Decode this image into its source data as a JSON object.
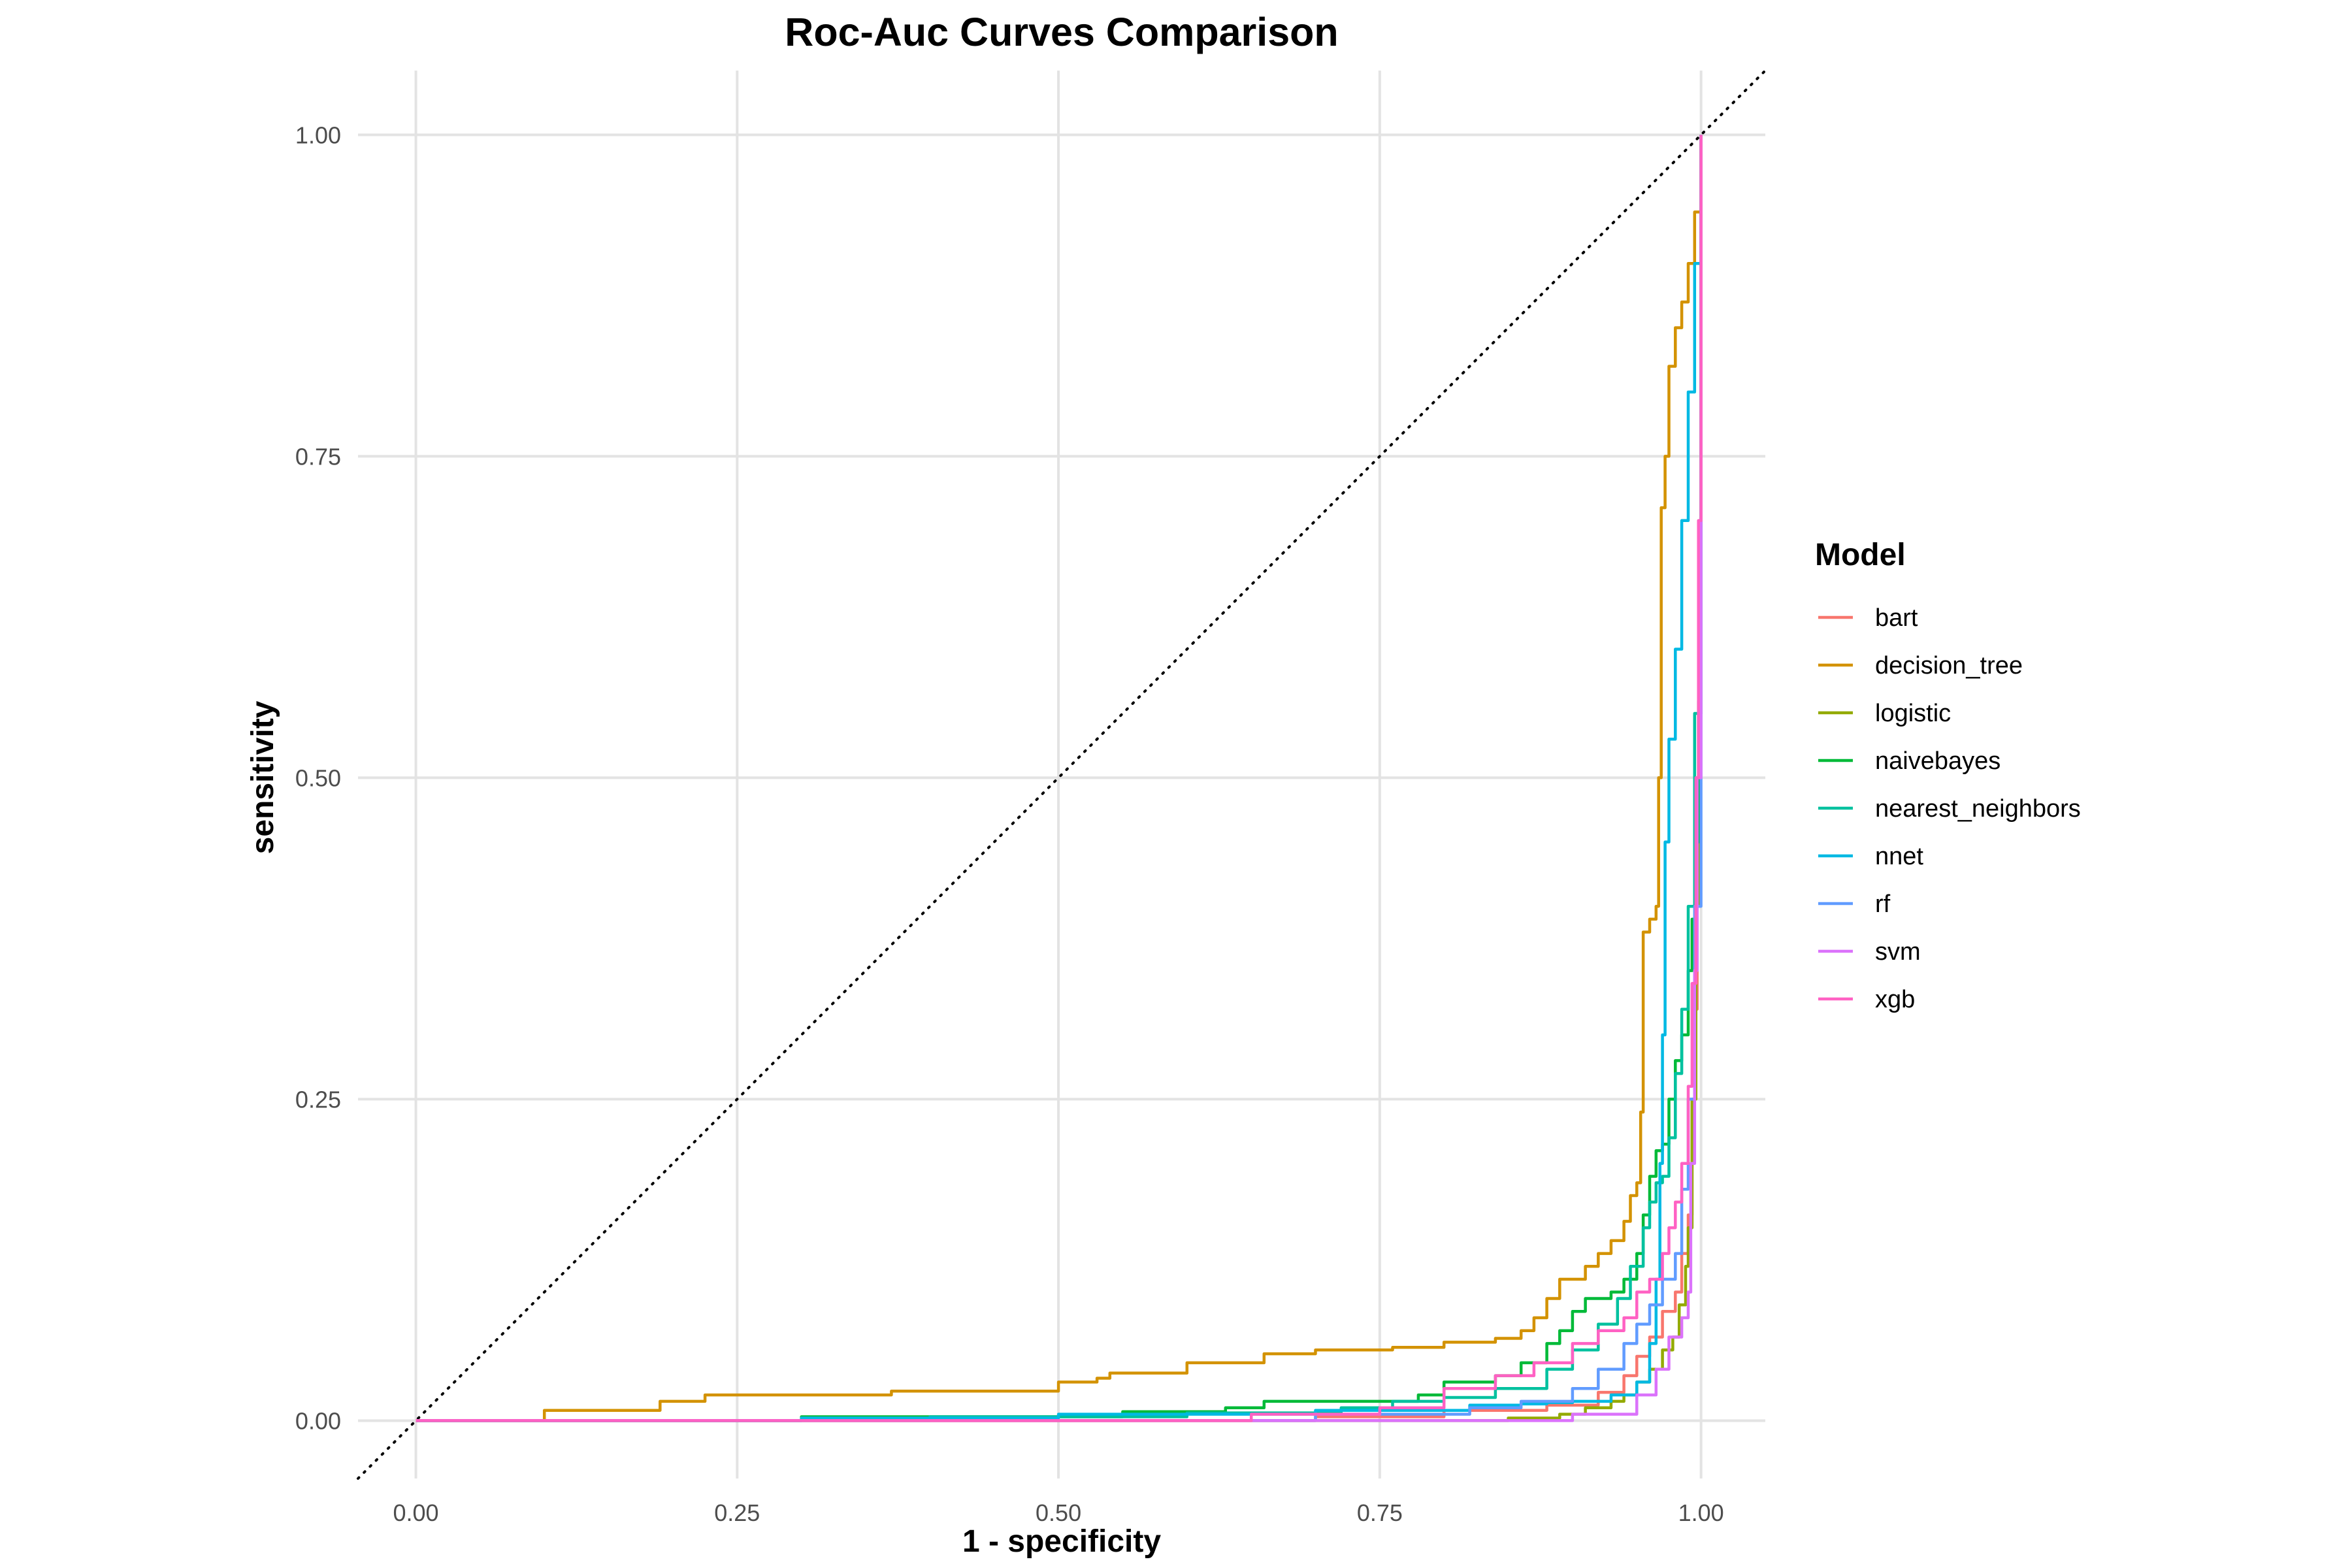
{
  "chart_data": {
    "type": "line",
    "title": "Roc-Auc Curves Comparison",
    "xlabel": "1 - specificity",
    "ylabel": "sensitivity",
    "xlim": [
      -0.045,
      1.05
    ],
    "ylim": [
      -0.045,
      1.05
    ],
    "x_ticks": [
      "0.00",
      "0.25",
      "0.50",
      "0.75",
      "1.00"
    ],
    "y_ticks": [
      "0.00",
      "0.25",
      "0.50",
      "0.75",
      "1.00"
    ],
    "grid": true,
    "reference_line": "dotted diagonal y = x",
    "legend": {
      "title": "Model",
      "position": "right"
    },
    "series": [
      {
        "name": "bart",
        "color": "#F8766D",
        "points": [
          [
            0,
            0
          ],
          [
            0.5,
            0
          ],
          [
            0.7,
            0.003
          ],
          [
            0.8,
            0.008
          ],
          [
            0.88,
            0.012
          ],
          [
            0.92,
            0.022
          ],
          [
            0.94,
            0.035
          ],
          [
            0.95,
            0.05
          ],
          [
            0.96,
            0.065
          ],
          [
            0.97,
            0.085
          ],
          [
            0.98,
            0.1
          ],
          [
            0.985,
            0.13
          ],
          [
            0.99,
            0.16
          ],
          [
            0.993,
            0.25
          ],
          [
            0.995,
            0.32
          ],
          [
            0.997,
            0.45
          ],
          [
            0.999,
            0.7
          ],
          [
            1,
            1
          ]
        ]
      },
      {
        "name": "decision_tree",
        "color": "#D39200",
        "points": [
          [
            0,
            0
          ],
          [
            0.1,
            0.008
          ],
          [
            0.19,
            0.015
          ],
          [
            0.225,
            0.02
          ],
          [
            0.34,
            0.02
          ],
          [
            0.37,
            0.023
          ],
          [
            0.5,
            0.03
          ],
          [
            0.53,
            0.033
          ],
          [
            0.54,
            0.037
          ],
          [
            0.6,
            0.045
          ],
          [
            0.66,
            0.052
          ],
          [
            0.7,
            0.055
          ],
          [
            0.76,
            0.057
          ],
          [
            0.8,
            0.061
          ],
          [
            0.84,
            0.064
          ],
          [
            0.86,
            0.07
          ],
          [
            0.87,
            0.08
          ],
          [
            0.88,
            0.095
          ],
          [
            0.89,
            0.11
          ],
          [
            0.91,
            0.12
          ],
          [
            0.92,
            0.13
          ],
          [
            0.93,
            0.14
          ],
          [
            0.94,
            0.155
          ],
          [
            0.945,
            0.175
          ],
          [
            0.95,
            0.185
          ],
          [
            0.953,
            0.24
          ],
          [
            0.955,
            0.38
          ],
          [
            0.96,
            0.39
          ],
          [
            0.965,
            0.4
          ],
          [
            0.967,
            0.5
          ],
          [
            0.969,
            0.71
          ],
          [
            0.972,
            0.75
          ],
          [
            0.975,
            0.82
          ],
          [
            0.98,
            0.85
          ],
          [
            0.985,
            0.87
          ],
          [
            0.99,
            0.9
          ],
          [
            0.995,
            0.94
          ],
          [
            1,
            1
          ]
        ]
      },
      {
        "name": "logistic",
        "color": "#93AA00",
        "points": [
          [
            0,
            0
          ],
          [
            0.5,
            0
          ],
          [
            0.83,
            0
          ],
          [
            0.85,
            0.002
          ],
          [
            0.89,
            0.005
          ],
          [
            0.91,
            0.01
          ],
          [
            0.93,
            0.015
          ],
          [
            0.94,
            0.02
          ],
          [
            0.95,
            0.03
          ],
          [
            0.96,
            0.04
          ],
          [
            0.97,
            0.055
          ],
          [
            0.978,
            0.065
          ],
          [
            0.983,
            0.09
          ],
          [
            0.988,
            0.12
          ],
          [
            0.99,
            0.15
          ],
          [
            0.993,
            0.25
          ],
          [
            0.996,
            0.4
          ],
          [
            0.998,
            0.55
          ],
          [
            1,
            1
          ]
        ]
      },
      {
        "name": "naivebayes",
        "color": "#00BA38",
        "points": [
          [
            0,
            0
          ],
          [
            0.3,
            0.003
          ],
          [
            0.55,
            0.007
          ],
          [
            0.63,
            0.01
          ],
          [
            0.66,
            0.015
          ],
          [
            0.75,
            0.015
          ],
          [
            0.78,
            0.02
          ],
          [
            0.8,
            0.03
          ],
          [
            0.84,
            0.035
          ],
          [
            0.86,
            0.045
          ],
          [
            0.88,
            0.06
          ],
          [
            0.89,
            0.07
          ],
          [
            0.9,
            0.085
          ],
          [
            0.91,
            0.095
          ],
          [
            0.93,
            0.1
          ],
          [
            0.94,
            0.11
          ],
          [
            0.95,
            0.13
          ],
          [
            0.955,
            0.16
          ],
          [
            0.96,
            0.19
          ],
          [
            0.965,
            0.21
          ],
          [
            0.97,
            0.215
          ],
          [
            0.975,
            0.25
          ],
          [
            0.98,
            0.28
          ],
          [
            0.985,
            0.3
          ],
          [
            0.99,
            0.35
          ],
          [
            0.993,
            0.39
          ],
          [
            0.996,
            0.45
          ],
          [
            0.998,
            0.56
          ],
          [
            1,
            1
          ]
        ]
      },
      {
        "name": "nearest_neighbors",
        "color": "#00C19F",
        "points": [
          [
            0,
            0
          ],
          [
            0.4,
            0.003
          ],
          [
            0.6,
            0.006
          ],
          [
            0.72,
            0.01
          ],
          [
            0.76,
            0.015
          ],
          [
            0.8,
            0.018
          ],
          [
            0.84,
            0.025
          ],
          [
            0.88,
            0.04
          ],
          [
            0.9,
            0.055
          ],
          [
            0.92,
            0.075
          ],
          [
            0.935,
            0.095
          ],
          [
            0.945,
            0.12
          ],
          [
            0.955,
            0.15
          ],
          [
            0.96,
            0.17
          ],
          [
            0.965,
            0.185
          ],
          [
            0.97,
            0.19
          ],
          [
            0.975,
            0.22
          ],
          [
            0.98,
            0.27
          ],
          [
            0.985,
            0.32
          ],
          [
            0.99,
            0.4
          ],
          [
            0.995,
            0.55
          ],
          [
            1,
            1
          ]
        ]
      },
      {
        "name": "nnet",
        "color": "#00B9E3",
        "points": [
          [
            0,
            0
          ],
          [
            0.3,
            0.002
          ],
          [
            0.5,
            0.005
          ],
          [
            0.7,
            0.008
          ],
          [
            0.82,
            0.012
          ],
          [
            0.86,
            0.013
          ],
          [
            0.88,
            0.014
          ],
          [
            0.9,
            0.015
          ],
          [
            0.93,
            0.02
          ],
          [
            0.95,
            0.03
          ],
          [
            0.96,
            0.06
          ],
          [
            0.965,
            0.11
          ],
          [
            0.968,
            0.2
          ],
          [
            0.97,
            0.3
          ],
          [
            0.972,
            0.45
          ],
          [
            0.975,
            0.53
          ],
          [
            0.98,
            0.6
          ],
          [
            0.985,
            0.7
          ],
          [
            0.99,
            0.8
          ],
          [
            0.995,
            0.9
          ],
          [
            1,
            1
          ]
        ]
      },
      {
        "name": "rf",
        "color": "#619CFF",
        "points": [
          [
            0,
            0
          ],
          [
            0.5,
            0
          ],
          [
            0.7,
            0.005
          ],
          [
            0.82,
            0.01
          ],
          [
            0.86,
            0.015
          ],
          [
            0.9,
            0.025
          ],
          [
            0.92,
            0.04
          ],
          [
            0.94,
            0.06
          ],
          [
            0.95,
            0.075
          ],
          [
            0.96,
            0.09
          ],
          [
            0.97,
            0.11
          ],
          [
            0.98,
            0.13
          ],
          [
            0.985,
            0.18
          ],
          [
            0.99,
            0.25
          ],
          [
            0.995,
            0.4
          ],
          [
            1,
            1
          ]
        ]
      },
      {
        "name": "svm",
        "color": "#DB72FB",
        "points": [
          [
            0,
            0
          ],
          [
            0.5,
            0
          ],
          [
            0.75,
            0
          ],
          [
            0.9,
            0.005
          ],
          [
            0.95,
            0.02
          ],
          [
            0.965,
            0.04
          ],
          [
            0.975,
            0.065
          ],
          [
            0.985,
            0.08
          ],
          [
            0.99,
            0.1
          ],
          [
            0.992,
            0.2
          ],
          [
            0.995,
            0.35
          ],
          [
            0.997,
            0.5
          ],
          [
            1,
            1
          ]
        ]
      },
      {
        "name": "xgb",
        "color": "#FF61C3",
        "points": [
          [
            0,
            0
          ],
          [
            0.5,
            0
          ],
          [
            0.65,
            0.005
          ],
          [
            0.75,
            0.01
          ],
          [
            0.8,
            0.025
          ],
          [
            0.84,
            0.035
          ],
          [
            0.87,
            0.045
          ],
          [
            0.9,
            0.06
          ],
          [
            0.92,
            0.07
          ],
          [
            0.94,
            0.08
          ],
          [
            0.95,
            0.1
          ],
          [
            0.96,
            0.11
          ],
          [
            0.97,
            0.13
          ],
          [
            0.975,
            0.15
          ],
          [
            0.98,
            0.17
          ],
          [
            0.985,
            0.2
          ],
          [
            0.99,
            0.26
          ],
          [
            0.993,
            0.34
          ],
          [
            0.996,
            0.5
          ],
          [
            0.998,
            0.7
          ],
          [
            1,
            1
          ]
        ]
      }
    ]
  }
}
